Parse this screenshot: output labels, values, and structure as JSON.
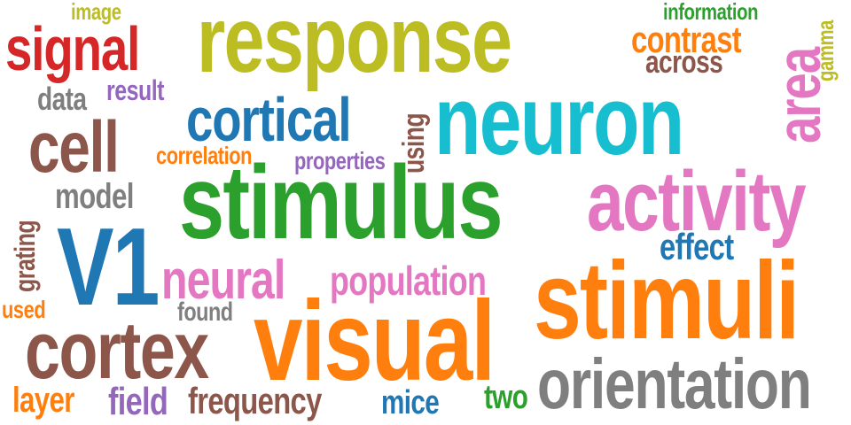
{
  "palette": {
    "red": "#d62728",
    "olive": "#bcbd22",
    "orange": "#ff7f0e",
    "green": "#2ca02c",
    "blue": "#1f77b4",
    "cyan": "#17becf",
    "pink": "#e377c2",
    "purple": "#9467bd",
    "brown": "#8c564b",
    "gray": "#7f7f7f"
  },
  "words": [
    "response",
    "neuron",
    "stimulus",
    "visual",
    "stimuli",
    "V1",
    "cortex",
    "activity",
    "cortical",
    "cell",
    "signal",
    "orientation",
    "area",
    "neural",
    "population",
    "contrast",
    "model",
    "data",
    "result",
    "correlation",
    "properties",
    "using",
    "effect",
    "found",
    "grating",
    "used",
    "layer",
    "field",
    "frequency",
    "mice",
    "two",
    "image",
    "information",
    "across",
    "gamma"
  ]
}
